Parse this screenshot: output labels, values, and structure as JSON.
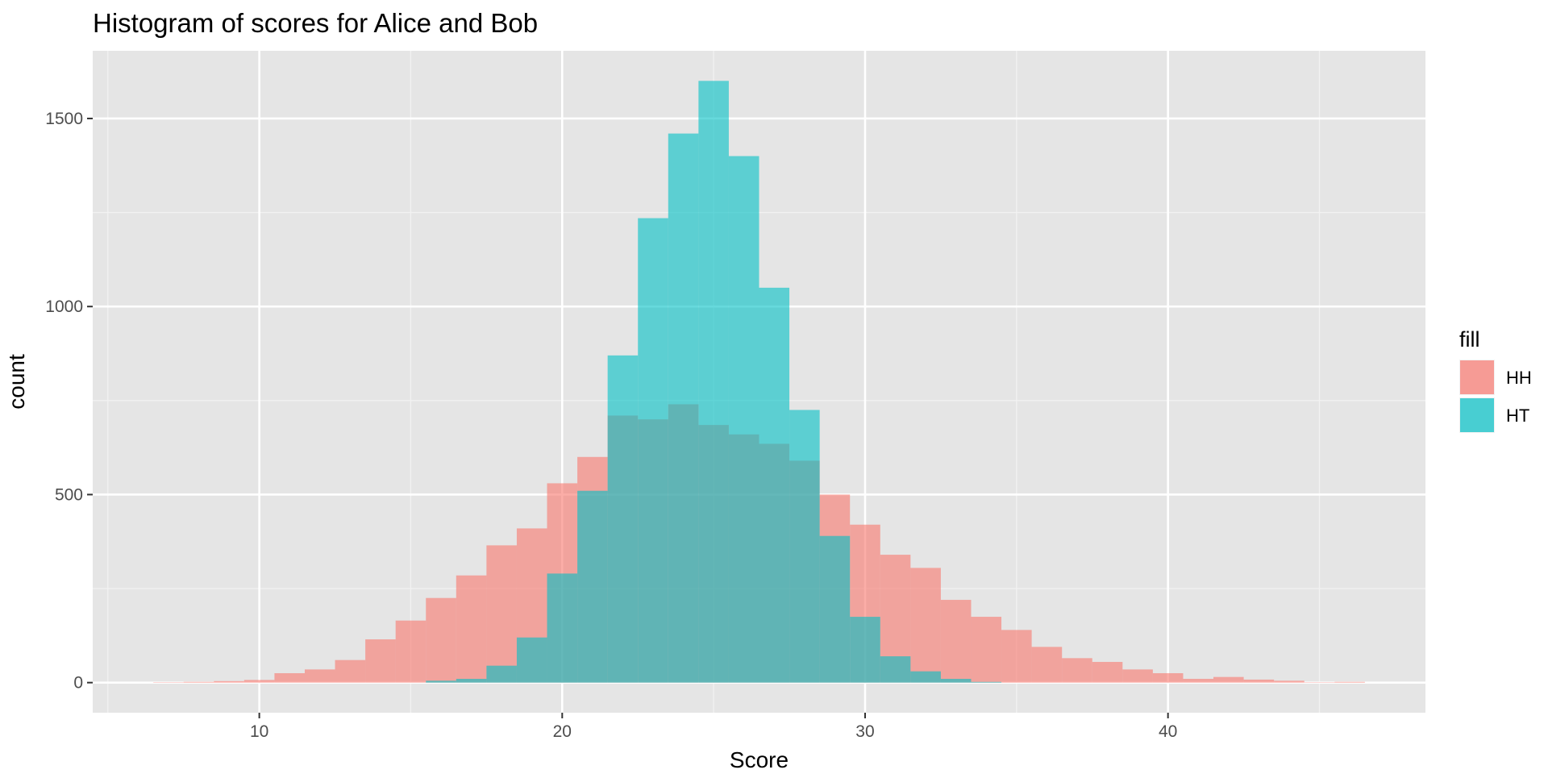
{
  "chart_data": {
    "type": "bar",
    "subtype": "histogram",
    "title": "Histogram of scores for Alice and Bob",
    "xlabel": "Score",
    "ylabel": "count",
    "xlim": [
      4.5,
      48.5
    ],
    "ylim": [
      -80,
      1680
    ],
    "x_ticks": [
      10,
      20,
      30,
      40
    ],
    "y_ticks": [
      0,
      500,
      1000,
      1500
    ],
    "x_minor_gridlines": [
      5,
      15,
      25,
      35,
      45
    ],
    "y_minor_gridlines": [
      250,
      750,
      1250
    ],
    "grid": true,
    "panel_background": "#e5e5e5",
    "position": "identity",
    "bar_opacity": 0.6,
    "bin_width": 1,
    "legend": {
      "title": "fill",
      "placement": "right",
      "entries": [
        {
          "label": "HH",
          "color": "#f8766d"
        },
        {
          "label": "HT",
          "color": "#00bfc4"
        }
      ]
    },
    "x": [
      6,
      7,
      8,
      9,
      10,
      11,
      12,
      13,
      14,
      15,
      16,
      17,
      18,
      19,
      20,
      21,
      22,
      23,
      24,
      25,
      26,
      27,
      28,
      29,
      30,
      31,
      32,
      33,
      34,
      35,
      36,
      37,
      38,
      39,
      40,
      41,
      42,
      43,
      44,
      45,
      46,
      47
    ],
    "series": [
      {
        "name": "HH",
        "color": "#f8766d",
        "values": [
          0,
          1,
          2,
          4,
          7,
          25,
          35,
          60,
          115,
          165,
          225,
          285,
          365,
          410,
          530,
          600,
          710,
          700,
          740,
          685,
          660,
          635,
          590,
          500,
          420,
          340,
          305,
          220,
          175,
          140,
          95,
          65,
          55,
          35,
          25,
          10,
          15,
          8,
          5,
          1,
          2,
          0
        ]
      },
      {
        "name": "HT",
        "color": "#00bfc4",
        "values": [
          0,
          0,
          0,
          0,
          0,
          0,
          0,
          0,
          0,
          0,
          5,
          10,
          45,
          120,
          290,
          510,
          870,
          1235,
          1460,
          1600,
          1400,
          1050,
          725,
          390,
          175,
          70,
          30,
          10,
          2,
          0,
          0,
          0,
          0,
          0,
          0,
          0,
          0,
          0,
          0,
          0,
          0,
          0
        ]
      }
    ]
  }
}
